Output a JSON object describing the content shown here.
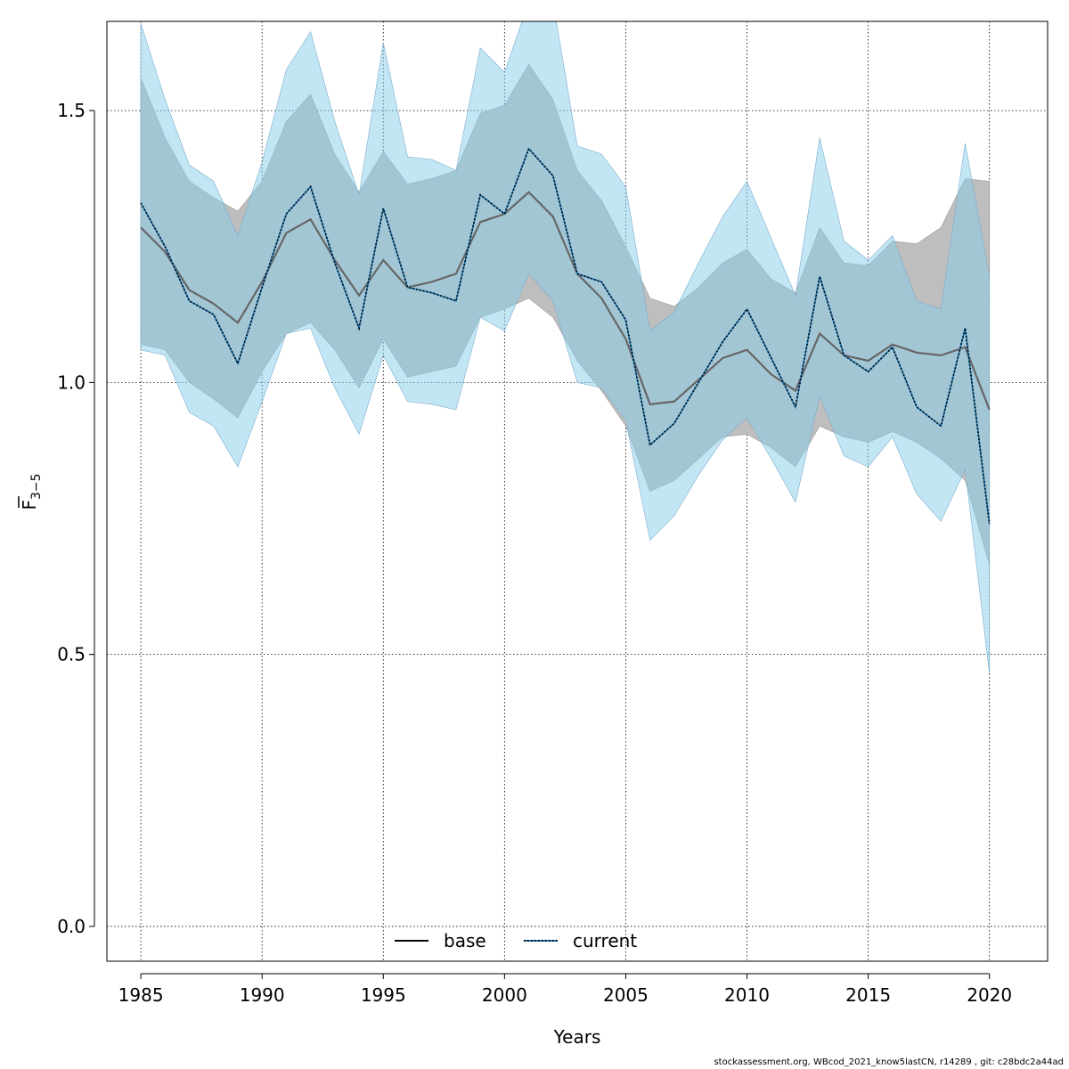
{
  "chart_data": {
    "type": "line",
    "title": "",
    "xlabel": "Years",
    "ylabel_main": "F",
    "ylabel_sub": "3−5",
    "xlim": [
      1983.6,
      2022.4
    ],
    "ylim": [
      -0.064,
      1.664
    ],
    "x_ticks": [
      1985,
      1990,
      1995,
      2000,
      2005,
      2010,
      2015,
      2020
    ],
    "y_ticks": [
      0.0,
      0.5,
      1.0,
      1.5
    ],
    "y_tick_labels": [
      "0.0",
      "0.5",
      "1.0",
      "1.5"
    ],
    "grid": true,
    "legend_position": "bottom-center",
    "x": [
      1985,
      1986,
      1987,
      1988,
      1989,
      1990,
      1991,
      1992,
      1993,
      1994,
      1995,
      1996,
      1997,
      1998,
      1999,
      2000,
      2001,
      2002,
      2003,
      2004,
      2005,
      2006,
      2007,
      2008,
      2009,
      2010,
      2011,
      2012,
      2013,
      2014,
      2015,
      2016,
      2017,
      2018,
      2019,
      2020
    ],
    "series": [
      {
        "name": "base",
        "line_style": "solid",
        "line_color": "#666666",
        "band_color": "#bebebe",
        "values": [
          1.285,
          1.24,
          1.17,
          1.145,
          1.11,
          1.185,
          1.275,
          1.3,
          1.225,
          1.16,
          1.225,
          1.175,
          1.185,
          1.2,
          1.295,
          1.31,
          1.35,
          1.305,
          1.2,
          1.155,
          1.08,
          0.96,
          0.965,
          1.005,
          1.045,
          1.06,
          1.015,
          0.985,
          1.09,
          1.05,
          1.04,
          1.07,
          1.055,
          1.05,
          1.065,
          0.95
        ],
        "lower": [
          1.07,
          1.06,
          1.0,
          0.97,
          0.935,
          1.02,
          1.09,
          1.11,
          1.06,
          0.99,
          1.08,
          1.01,
          1.02,
          1.03,
          1.12,
          1.135,
          1.155,
          1.12,
          1.04,
          0.985,
          0.92,
          0.8,
          0.82,
          0.86,
          0.9,
          0.905,
          0.88,
          0.845,
          0.92,
          0.9,
          0.89,
          0.91,
          0.89,
          0.86,
          0.82,
          0.665
        ],
        "upper": [
          1.56,
          1.45,
          1.37,
          1.34,
          1.315,
          1.37,
          1.48,
          1.53,
          1.42,
          1.35,
          1.425,
          1.365,
          1.375,
          1.39,
          1.495,
          1.51,
          1.585,
          1.52,
          1.39,
          1.335,
          1.25,
          1.155,
          1.14,
          1.175,
          1.22,
          1.245,
          1.19,
          1.165,
          1.285,
          1.22,
          1.215,
          1.26,
          1.255,
          1.285,
          1.375,
          1.37
        ]
      },
      {
        "name": "current",
        "line_style": "dotted",
        "line_color": "#000000",
        "band_color": "#87ceeb",
        "values": [
          1.33,
          1.25,
          1.15,
          1.125,
          1.035,
          1.175,
          1.31,
          1.36,
          1.22,
          1.1,
          1.32,
          1.175,
          1.165,
          1.15,
          1.345,
          1.31,
          1.43,
          1.38,
          1.2,
          1.185,
          1.115,
          0.885,
          0.925,
          1.0,
          1.075,
          1.135,
          1.045,
          0.955,
          1.195,
          1.05,
          1.02,
          1.065,
          0.955,
          0.92,
          1.1,
          0.74
        ],
        "lower": [
          1.06,
          1.05,
          0.945,
          0.92,
          0.845,
          0.965,
          1.09,
          1.1,
          0.99,
          0.905,
          1.05,
          0.965,
          0.96,
          0.95,
          1.12,
          1.095,
          1.2,
          1.15,
          1.0,
          0.99,
          0.93,
          0.71,
          0.755,
          0.83,
          0.895,
          0.935,
          0.86,
          0.78,
          0.975,
          0.865,
          0.845,
          0.9,
          0.795,
          0.745,
          0.84,
          0.465
        ],
        "upper": [
          1.66,
          1.52,
          1.4,
          1.37,
          1.27,
          1.405,
          1.575,
          1.645,
          1.48,
          1.345,
          1.625,
          1.415,
          1.41,
          1.39,
          1.615,
          1.57,
          1.7,
          1.7,
          1.435,
          1.42,
          1.36,
          1.095,
          1.13,
          1.22,
          1.305,
          1.37,
          1.265,
          1.16,
          1.45,
          1.26,
          1.225,
          1.27,
          1.15,
          1.135,
          1.44,
          1.195
        ]
      }
    ]
  },
  "footer_text": "stockassessment.org, WBcod_2021_know5lastCN, r14289 , git: c28bdc2a44ad"
}
